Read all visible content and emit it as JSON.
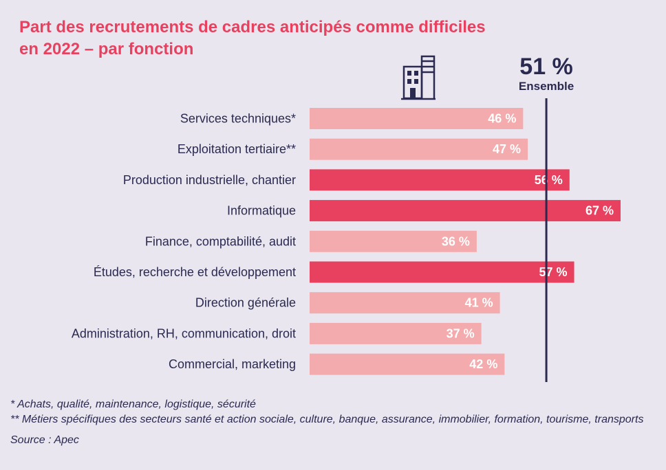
{
  "title_lines": [
    "Part des recrutements de cadres anticipés comme difficiles",
    "en 2022 – par fonction"
  ],
  "colors": {
    "highlight": "#e8415f",
    "normal": "#f4abae",
    "reference": "#2a2950",
    "icon": "#2a2950",
    "background": "#e9e6ef"
  },
  "icon": "office-building-icon",
  "chart_data": {
    "type": "bar",
    "orientation": "horizontal",
    "categories": [
      "Services techniques*",
      "Exploitation tertiaire**",
      "Production industrielle, chantier",
      "Informatique",
      "Finance, comptabilité, audit",
      "Études, recherche et développement",
      "Direction générale",
      "Administration, RH, communication, droit",
      "Commercial, marketing"
    ],
    "values": [
      46,
      47,
      56,
      67,
      36,
      57,
      41,
      37,
      42
    ],
    "value_labels": [
      "46 %",
      "47 %",
      "56 %",
      "67 %",
      "36 %",
      "57 %",
      "41 %",
      "37 %",
      "42 %"
    ],
    "highlighted": [
      false,
      false,
      true,
      true,
      false,
      true,
      false,
      false,
      false
    ],
    "xlim": [
      0,
      67
    ],
    "grid": false,
    "reference": {
      "value": 51,
      "label": "51 %",
      "caption": "Ensemble"
    }
  },
  "footnotes": [
    "* Achats, qualité, maintenance, logistique, sécurité",
    "** Métiers spécifiques des secteurs santé et action sociale, culture, banque, assurance, immobilier, formation, tourisme, transports"
  ],
  "source": "Source : Apec"
}
